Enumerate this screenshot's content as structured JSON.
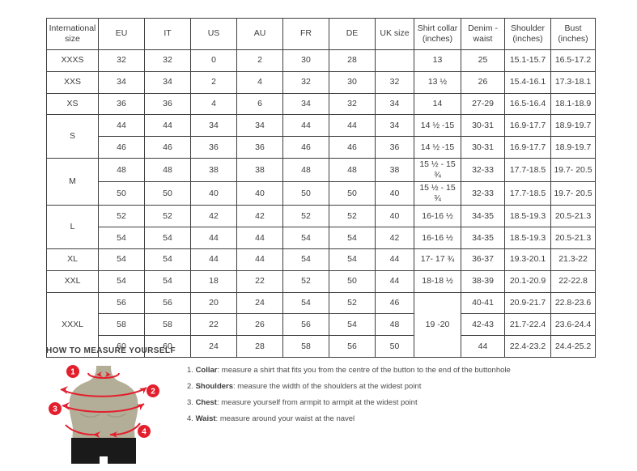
{
  "table": {
    "headers": [
      "International size",
      "EU",
      "IT",
      "US",
      "AU",
      "FR",
      "DE",
      "UK size",
      "Shirt collar (inches)",
      "Denim - waist",
      "Shoulder (inches)",
      "Bust (inches)"
    ],
    "rows": [
      {
        "cells": [
          {
            "t": "XXXS"
          },
          {
            "t": "32"
          },
          {
            "t": "32"
          },
          {
            "t": "0"
          },
          {
            "t": "2"
          },
          {
            "t": "30"
          },
          {
            "t": "28"
          },
          {
            "t": ""
          },
          {
            "t": "13"
          },
          {
            "t": "25"
          },
          {
            "t": "15.1-15.7"
          },
          {
            "t": "16.5-17.2"
          }
        ]
      },
      {
        "cells": [
          {
            "t": "XXS"
          },
          {
            "t": "34"
          },
          {
            "t": "34"
          },
          {
            "t": "2"
          },
          {
            "t": "4"
          },
          {
            "t": "32"
          },
          {
            "t": "30"
          },
          {
            "t": "32"
          },
          {
            "t": "13 ½"
          },
          {
            "t": "26"
          },
          {
            "t": "15.4-16.1"
          },
          {
            "t": "17.3-18.1"
          }
        ]
      },
      {
        "cells": [
          {
            "t": "XS"
          },
          {
            "t": "36"
          },
          {
            "t": "36"
          },
          {
            "t": "4"
          },
          {
            "t": "6"
          },
          {
            "t": "34"
          },
          {
            "t": "32"
          },
          {
            "t": "34"
          },
          {
            "t": "14"
          },
          {
            "t": "27-29"
          },
          {
            "t": "16.5-16.4"
          },
          {
            "t": "18.1-18.9"
          }
        ]
      },
      {
        "cells": [
          {
            "t": "S",
            "rs": 2
          },
          {
            "t": "44"
          },
          {
            "t": "44"
          },
          {
            "t": "34"
          },
          {
            "t": "34"
          },
          {
            "t": "44"
          },
          {
            "t": "44"
          },
          {
            "t": "34"
          },
          {
            "t": "14 ½ -15"
          },
          {
            "t": "30-31"
          },
          {
            "t": "16.9-17.7"
          },
          {
            "t": "18.9-19.7"
          }
        ]
      },
      {
        "cells": [
          {
            "t": "46"
          },
          {
            "t": "46"
          },
          {
            "t": "36"
          },
          {
            "t": "36"
          },
          {
            "t": "46"
          },
          {
            "t": "46"
          },
          {
            "t": "36"
          },
          {
            "t": "14 ½ -15"
          },
          {
            "t": "30-31"
          },
          {
            "t": "16.9-17.7"
          },
          {
            "t": "18.9-19.7"
          }
        ]
      },
      {
        "cells": [
          {
            "t": "M",
            "rs": 2
          },
          {
            "t": "48"
          },
          {
            "t": "48"
          },
          {
            "t": "38"
          },
          {
            "t": "38"
          },
          {
            "t": "48"
          },
          {
            "t": "48"
          },
          {
            "t": "38"
          },
          {
            "t": "15 ½ - 15 ¾"
          },
          {
            "t": "32-33"
          },
          {
            "t": "17.7-18.5"
          },
          {
            "t": "19.7- 20.5"
          }
        ]
      },
      {
        "cells": [
          {
            "t": "50"
          },
          {
            "t": "50"
          },
          {
            "t": "40"
          },
          {
            "t": "40"
          },
          {
            "t": "50"
          },
          {
            "t": "50"
          },
          {
            "t": "40"
          },
          {
            "t": "15 ½ - 15 ¾"
          },
          {
            "t": "32-33"
          },
          {
            "t": "17.7-18.5"
          },
          {
            "t": "19.7- 20.5"
          }
        ]
      },
      {
        "cells": [
          {
            "t": "L",
            "rs": 2
          },
          {
            "t": "52"
          },
          {
            "t": "52"
          },
          {
            "t": "42"
          },
          {
            "t": "42"
          },
          {
            "t": "52"
          },
          {
            "t": "52"
          },
          {
            "t": "40"
          },
          {
            "t": "16-16 ½"
          },
          {
            "t": "34-35"
          },
          {
            "t": "18.5-19.3"
          },
          {
            "t": "20.5-21.3"
          }
        ]
      },
      {
        "cells": [
          {
            "t": "54"
          },
          {
            "t": "54"
          },
          {
            "t": "44"
          },
          {
            "t": "44"
          },
          {
            "t": "54"
          },
          {
            "t": "54"
          },
          {
            "t": "42"
          },
          {
            "t": "16-16 ½"
          },
          {
            "t": "34-35"
          },
          {
            "t": "18.5-19.3"
          },
          {
            "t": "20.5-21.3"
          }
        ]
      },
      {
        "cells": [
          {
            "t": "XL"
          },
          {
            "t": "54"
          },
          {
            "t": "54"
          },
          {
            "t": "44"
          },
          {
            "t": "44"
          },
          {
            "t": "54"
          },
          {
            "t": "54"
          },
          {
            "t": "44"
          },
          {
            "t": "17- 17 ¾"
          },
          {
            "t": "36-37"
          },
          {
            "t": "19.3-20.1"
          },
          {
            "t": "21.3-22"
          }
        ]
      },
      {
        "cells": [
          {
            "t": "XXL"
          },
          {
            "t": "54"
          },
          {
            "t": "54"
          },
          {
            "t": "18"
          },
          {
            "t": "22"
          },
          {
            "t": "52"
          },
          {
            "t": "50"
          },
          {
            "t": "44"
          },
          {
            "t": "18-18 ½"
          },
          {
            "t": "38-39"
          },
          {
            "t": "20.1-20.9"
          },
          {
            "t": "22-22.8"
          }
        ]
      },
      {
        "cells": [
          {
            "t": "XXXL",
            "rs": 3
          },
          {
            "t": "56"
          },
          {
            "t": "56"
          },
          {
            "t": "20"
          },
          {
            "t": "24"
          },
          {
            "t": "54"
          },
          {
            "t": "52"
          },
          {
            "t": "46"
          },
          {
            "t": "19 -20",
            "rs": 3
          },
          {
            "t": "40-41"
          },
          {
            "t": "20.9-21.7"
          },
          {
            "t": "22.8-23.6"
          }
        ]
      },
      {
        "cells": [
          {
            "t": "58"
          },
          {
            "t": "58"
          },
          {
            "t": "22"
          },
          {
            "t": "26"
          },
          {
            "t": "56"
          },
          {
            "t": "54"
          },
          {
            "t": "48"
          },
          {
            "t": "42-43"
          },
          {
            "t": "21.7-22.4"
          },
          {
            "t": "23.6-24.4"
          }
        ]
      },
      {
        "cells": [
          {
            "t": "60"
          },
          {
            "t": "60"
          },
          {
            "t": "24"
          },
          {
            "t": "28"
          },
          {
            "t": "58"
          },
          {
            "t": "56"
          },
          {
            "t": "50"
          },
          {
            "t": "44"
          },
          {
            "t": "22.4-23.2"
          },
          {
            "t": "24.4-25.2"
          }
        ]
      }
    ]
  },
  "measure": {
    "title": "HOW TO MEASURE YOURSELF",
    "steps": [
      {
        "num": "1.",
        "badge": "1",
        "label": "Collar",
        "text": ": measure a shirt that fits you from the centre of the button to the end of the buttonhole"
      },
      {
        "num": "2.",
        "badge": "2",
        "label": "Shoulders",
        "text": ": measure the width of the shoulders at the widest point"
      },
      {
        "num": "3.",
        "badge": "3",
        "label": "Chest",
        "text": ": measure yourself from armpit to armpit at the widest point"
      },
      {
        "num": "4.",
        "badge": "4",
        "label": "Waist",
        "text": ": measure around your waist at the navel"
      }
    ]
  },
  "colors": {
    "accent_red": "#e31f2d",
    "body_tan": "#b3ae97",
    "shorts_black": "#1a1a1a",
    "text": "#3c3c3c",
    "border": "#3f3f3f"
  }
}
